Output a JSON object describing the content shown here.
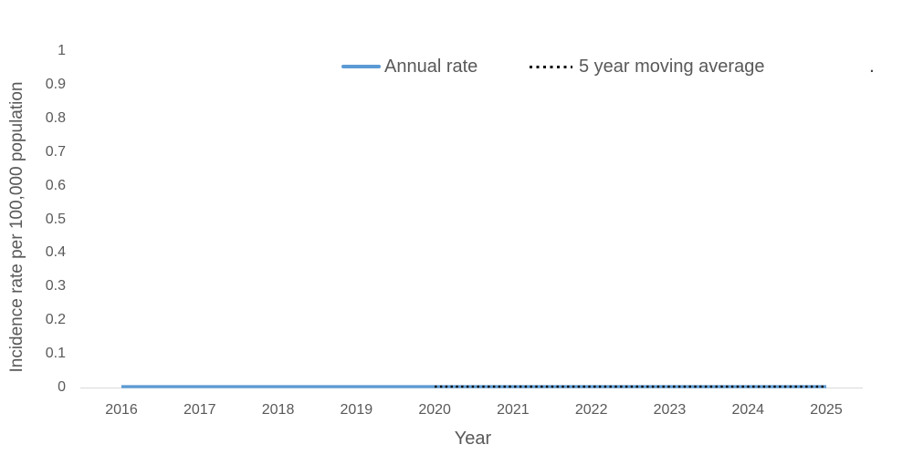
{
  "figure": {
    "background_color": "#ffffff",
    "text_color": "#595959"
  },
  "legend": {
    "position": "top",
    "items": [
      {
        "label": "Annual rate",
        "swatch": "solid-line",
        "color": "#5B9BD5"
      },
      {
        "label": "5 year moving average",
        "swatch": "dotted-line",
        "color": "#0d0d0d"
      }
    ],
    "trailing_text": "."
  },
  "chart_data": {
    "type": "line",
    "title": "",
    "xlabel": "Year",
    "ylabel": "Incidence rate per 100,000 population",
    "categories": [
      "2016",
      "2017",
      "2018",
      "2019",
      "2020",
      "2021",
      "2022",
      "2023",
      "2024",
      "2025"
    ],
    "ytick_labels": [
      "0",
      "0.1",
      "0.2",
      "0.3",
      "0.4",
      "0.5",
      "0.6",
      "0.7",
      "0.8",
      "0.9",
      "1"
    ],
    "ylim": [
      0,
      1
    ],
    "grid": false,
    "legend_position": "top-center",
    "axis_color": "#D9D9D9",
    "series": [
      {
        "name": "Annual rate",
        "style": "solid",
        "color": "#5B9BD5",
        "x": [
          "2016",
          "2017",
          "2018",
          "2019",
          "2020",
          "2021",
          "2022",
          "2023",
          "2024",
          "2025"
        ],
        "values": [
          0,
          0,
          0,
          0,
          0,
          0,
          0,
          0,
          0,
          0
        ]
      },
      {
        "name": "5 year moving average",
        "style": "dotted",
        "color": "#0d0d0d",
        "x": [
          "2020",
          "2021",
          "2022",
          "2023",
          "2024",
          "2025"
        ],
        "values": [
          0,
          0,
          0,
          0,
          0,
          0
        ]
      }
    ]
  }
}
